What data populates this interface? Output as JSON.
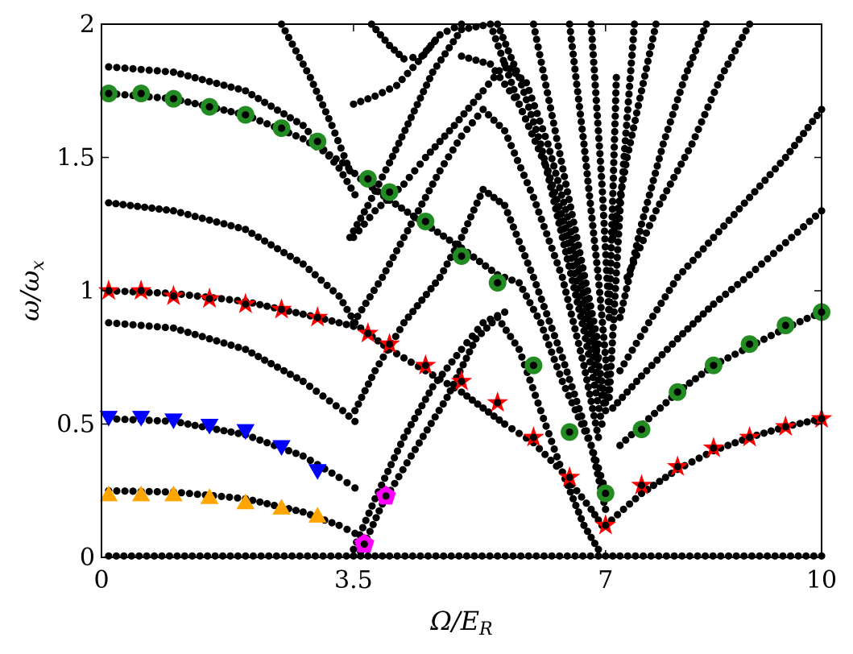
{
  "chart_data": {
    "type": "scatter",
    "xlabel": "Ω/E_R",
    "ylabel": "ω/ω_x",
    "xlim": [
      0,
      10
    ],
    "ylim": [
      0,
      2
    ],
    "x_ticks": [
      "0",
      "3.5",
      "7",
      "10"
    ],
    "x_tick_values": [
      0,
      3.5,
      7,
      10
    ],
    "y_ticks": [
      "0",
      "0.5",
      "1",
      "1.5",
      "2"
    ],
    "y_tick_values": [
      0,
      0.5,
      1,
      1.5,
      2
    ],
    "grid": false,
    "legend": "none",
    "series": [
      {
        "marker": "circle-small",
        "color": "#000000",
        "curves": [
          {
            "x": [
              0.1,
              2.0,
              3.4,
              4.0,
              5.5,
              6.9,
              7.2,
              10
            ],
            "y": [
              0.005,
              0.005,
              0.005,
              0.005,
              0.005,
              0.005,
              0.005,
              0.005
            ]
          },
          {
            "x": [
              0.1,
              1.0,
              2.0,
              2.8,
              3.3,
              3.52
            ],
            "y": [
              0.25,
              0.245,
              0.22,
              0.17,
              0.12,
              0.09
            ]
          },
          {
            "x": [
              3.6,
              3.9,
              4.3,
              4.8,
              5.2,
              5.5,
              5.8,
              6.1,
              6.4,
              6.7,
              6.9
            ],
            "y": [
              0.02,
              0.2,
              0.38,
              0.6,
              0.82,
              0.9,
              0.78,
              0.55,
              0.32,
              0.12,
              0.03
            ]
          },
          {
            "x": [
              0.1,
              1.0,
              2.0,
              2.8,
              3.3,
              3.52
            ],
            "y": [
              0.52,
              0.51,
              0.46,
              0.38,
              0.3,
              0.26
            ]
          },
          {
            "x": [
              3.5,
              3.8,
              4.2,
              4.6,
              5.0,
              5.3,
              5.6
            ],
            "y": [
              0.03,
              0.22,
              0.45,
              0.64,
              0.78,
              0.88,
              0.92
            ]
          },
          {
            "x": [
              0.1,
              1.0,
              2.0,
              2.8,
              3.35,
              3.52
            ],
            "y": [
              0.88,
              0.86,
              0.78,
              0.66,
              0.55,
              0.51
            ]
          },
          {
            "x": [
              3.52,
              3.8,
              4.2,
              4.7,
              5.0,
              5.3,
              5.6,
              6.0,
              6.4,
              6.8,
              7.0
            ],
            "y": [
              0.55,
              0.7,
              0.88,
              1.05,
              1.2,
              1.38,
              1.32,
              1.05,
              0.75,
              0.42,
              0.18
            ]
          },
          {
            "x": [
              0.1,
              1.0,
              2.0,
              3.0,
              3.6,
              4.0,
              4.5,
              5.0,
              5.3,
              5.6,
              6.0,
              6.4,
              6.8,
              6.95
            ],
            "y": [
              1.0,
              0.99,
              0.96,
              0.9,
              0.86,
              0.78,
              0.7,
              0.62,
              0.56,
              0.5,
              0.43,
              0.32,
              0.18,
              0.12
            ]
          },
          {
            "x": [
              7.0,
              7.5,
              8.0,
              8.5,
              9.0,
              9.5,
              10.0
            ],
            "y": [
              0.12,
              0.24,
              0.33,
              0.4,
              0.45,
              0.49,
              0.52
            ]
          },
          {
            "x": [
              0.1,
              1.0,
              2.0,
              2.8,
              3.3,
              3.52
            ],
            "y": [
              1.33,
              1.3,
              1.23,
              1.1,
              0.98,
              0.88
            ]
          },
          {
            "x": [
              3.5,
              3.9,
              4.3,
              4.7,
              5.0,
              5.3,
              5.6,
              6.0,
              6.4,
              6.7,
              6.9
            ],
            "y": [
              0.88,
              1.05,
              1.25,
              1.45,
              1.58,
              1.68,
              1.6,
              1.35,
              1.05,
              0.72,
              0.45
            ]
          },
          {
            "x": [
              0.1,
              1.0,
              2.0,
              2.8,
              3.35,
              3.6,
              4.0,
              4.5,
              5.0,
              5.5,
              5.8,
              6.1,
              6.4,
              6.8,
              7.0
            ],
            "y": [
              1.74,
              1.72,
              1.66,
              1.57,
              1.48,
              1.42,
              1.34,
              1.25,
              1.16,
              1.06,
              1.03,
              0.88,
              0.66,
              0.42,
              0.25
            ]
          },
          {
            "x": [
              7.2,
              7.6,
              8.0,
              8.5,
              9.0,
              9.5,
              10.0
            ],
            "y": [
              0.42,
              0.52,
              0.62,
              0.72,
              0.79,
              0.86,
              0.92
            ]
          },
          {
            "x": [
              0.1,
              1.0,
              2.0,
              2.8,
              3.3,
              3.52
            ],
            "y": [
              1.84,
              1.82,
              1.75,
              1.62,
              1.46,
              1.36
            ]
          },
          {
            "x": [
              3.5,
              3.8,
              4.2,
              4.5,
              4.9,
              5.3,
              5.6,
              5.9,
              6.2,
              6.5,
              6.8,
              7.0
            ],
            "y": [
              1.2,
              1.3,
              1.4,
              1.5,
              1.62,
              1.75,
              1.85,
              1.78,
              1.55,
              1.25,
              0.88,
              0.58
            ]
          },
          {
            "x": [
              7.1,
              7.5,
              8.0,
              8.5,
              9.0,
              9.5,
              10.0
            ],
            "y": [
              0.56,
              0.68,
              0.82,
              0.95,
              1.06,
              1.18,
              1.3
            ]
          },
          {
            "x": [
              2.5,
              2.9,
              3.2,
              3.45
            ],
            "y": [
              2.0,
              1.8,
              1.62,
              1.45
            ]
          },
          {
            "x": [
              3.45,
              3.7,
              4.0,
              4.3,
              4.6,
              5.0,
              5.4,
              5.8,
              6.2,
              6.5,
              6.8,
              7.0
            ],
            "y": [
              1.2,
              1.32,
              1.48,
              1.65,
              1.82,
              1.98,
              2.0,
              1.7,
              1.45,
              1.15,
              0.78,
              0.55
            ]
          },
          {
            "x": [
              7.2,
              7.6,
              8.0,
              8.5,
              9.0,
              9.5,
              10.0
            ],
            "y": [
              0.7,
              0.88,
              1.05,
              1.2,
              1.35,
              1.5,
              1.68
            ]
          },
          {
            "x": [
              3.5,
              3.8,
              4.1,
              4.4,
              4.7,
              5.0
            ],
            "y": [
              1.7,
              1.73,
              1.77,
              1.86,
              1.96,
              2.0
            ]
          },
          {
            "x": [
              3.75,
              4.0,
              4.2,
              4.45,
              4.7
            ],
            "y": [
              2.0,
              1.92,
              1.87,
              1.88,
              1.96
            ]
          },
          {
            "x": [
              5.5,
              5.8,
              6.1,
              6.4,
              6.7,
              6.95
            ],
            "y": [
              2.0,
              1.8,
              1.55,
              1.2,
              0.85,
              0.5
            ]
          },
          {
            "x": [
              7.3,
              7.7,
              8.2,
              8.6,
              9.0
            ],
            "y": [
              1.05,
              1.3,
              1.55,
              1.8,
              2.0
            ]
          },
          {
            "x": [
              5.0,
              5.4,
              5.8,
              6.2,
              6.6,
              6.9
            ],
            "y": [
              1.88,
              1.85,
              1.7,
              1.45,
              1.1,
              0.75
            ]
          },
          {
            "x": [
              7.2,
              7.5,
              7.8,
              8.1,
              8.4
            ],
            "y": [
              0.9,
              1.25,
              1.55,
              1.8,
              2.0
            ]
          },
          {
            "x": [
              6.0,
              6.3,
              6.6,
              6.9
            ],
            "y": [
              2.0,
              1.6,
              1.2,
              0.8
            ]
          },
          {
            "x": [
              7.1,
              7.3,
              7.5,
              7.7
            ],
            "y": [
              1.2,
              1.5,
              1.75,
              2.0
            ]
          },
          {
            "x": [
              6.5,
              6.7,
              6.9,
              7.05,
              7.2,
              7.4
            ],
            "y": [
              2.0,
              1.55,
              1.05,
              0.6,
              1.3,
              2.0
            ]
          },
          {
            "x": [
              6.8,
              6.95,
              7.05,
              7.15
            ],
            "y": [
              2.0,
              1.4,
              0.9,
              1.8
            ]
          }
        ]
      },
      {
        "marker": "circle-large",
        "color": "#228b22",
        "x": [
          0.1,
          0.55,
          1.0,
          1.5,
          2.0,
          2.5,
          3.0,
          3.7,
          4.0,
          4.5,
          5.0,
          5.5,
          6.0,
          6.5,
          7.0,
          7.5,
          8.0,
          8.5,
          9.0,
          9.5,
          10.0
        ],
        "y": [
          1.74,
          1.74,
          1.72,
          1.69,
          1.66,
          1.61,
          1.56,
          1.42,
          1.37,
          1.26,
          1.13,
          1.03,
          0.72,
          0.47,
          0.24,
          0.48,
          0.62,
          0.72,
          0.8,
          0.87,
          0.92
        ]
      },
      {
        "marker": "star",
        "color": "#ff0000",
        "x": [
          0.1,
          0.55,
          1.0,
          1.5,
          2.0,
          2.5,
          3.0,
          3.7,
          4.0,
          4.5,
          5.0,
          5.5,
          6.0,
          6.5,
          7.0,
          7.5,
          8.0,
          8.5,
          9.0,
          9.5,
          10.0
        ],
        "y": [
          1.0,
          1.0,
          0.98,
          0.97,
          0.95,
          0.93,
          0.9,
          0.84,
          0.8,
          0.72,
          0.66,
          0.58,
          0.45,
          0.3,
          0.12,
          0.27,
          0.34,
          0.41,
          0.45,
          0.49,
          0.52
        ]
      },
      {
        "marker": "triangle-down",
        "color": "#0000ff",
        "x": [
          0.1,
          0.55,
          1.0,
          1.5,
          2.0,
          2.5,
          3.0
        ],
        "y": [
          0.53,
          0.53,
          0.52,
          0.5,
          0.48,
          0.42,
          0.33
        ]
      },
      {
        "marker": "triangle-up",
        "color": "#ffa500",
        "x": [
          0.1,
          0.55,
          1.0,
          1.5,
          2.0,
          2.5,
          3.0
        ],
        "y": [
          0.23,
          0.23,
          0.23,
          0.22,
          0.2,
          0.18,
          0.15
        ]
      },
      {
        "marker": "pentagon",
        "color": "#ff00ff",
        "x": [
          3.65,
          3.95
        ],
        "y": [
          0.05,
          0.23
        ]
      }
    ]
  }
}
